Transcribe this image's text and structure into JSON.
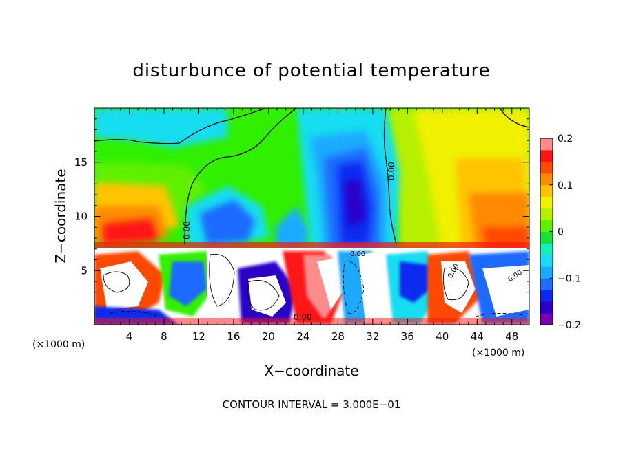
{
  "chart_data": {
    "type": "heatmap",
    "title": "disturbunce of potential temperature",
    "xlabel": "X−coordinate",
    "ylabel": "Z−coordinate",
    "x_unit": "(×1000 m)",
    "z_unit": "(×1000 m)",
    "xlim": [
      0,
      50
    ],
    "ylim": [
      0,
      20
    ],
    "x_ticks": [
      4,
      8,
      12,
      16,
      20,
      24,
      28,
      32,
      36,
      40,
      44,
      48
    ],
    "y_ticks": [
      5,
      10,
      15
    ],
    "colorbar": {
      "ticks": [
        0.2,
        0.1,
        0,
        -0.1,
        -0.2
      ],
      "tick_labels": [
        "0.2",
        "0.1",
        "0",
        "−0.1",
        "−0.2"
      ],
      "range": [
        -0.2,
        0.2
      ],
      "colors": [
        "#7a00b4",
        "#2a00c8",
        "#0a2af0",
        "#1e6bff",
        "#1aaaff",
        "#16ddf0",
        "#15f0b8",
        "#18e03a",
        "#5ef000",
        "#b6f000",
        "#f0f000",
        "#ffc400",
        "#ff8a00",
        "#ff4a00",
        "#ff1414",
        "#ff8c8c"
      ]
    },
    "contour_interval_text": "CONTOUR INTERVAL = 3.000E−01",
    "contour_labels": [
      "0.00",
      "0.00",
      "0.00",
      "0.00",
      "0.00",
      "0.00"
    ],
    "inversion_height": 7.2,
    "upper_layer_features": [
      {
        "x": 5,
        "z": 9.5,
        "value": 0.14
      },
      {
        "x": 13,
        "z": 16,
        "value": 0.02
      },
      {
        "x": 17,
        "z": 9.5,
        "value": -0.1
      },
      {
        "x": 24,
        "z": 17.5,
        "value": -0.04
      },
      {
        "x": 25.5,
        "z": 14,
        "value": -0.09
      },
      {
        "x": 29.5,
        "z": 11,
        "value": -0.19
      },
      {
        "x": 30,
        "z": 15,
        "value": -0.14
      },
      {
        "x": 38,
        "z": 17,
        "value": 0.03
      },
      {
        "x": 41,
        "z": 14,
        "value": 0.07
      },
      {
        "x": 45,
        "z": 10.5,
        "value": 0.12
      }
    ]
  },
  "colors": {
    "frame": "#000000",
    "background": "#ffffff"
  }
}
